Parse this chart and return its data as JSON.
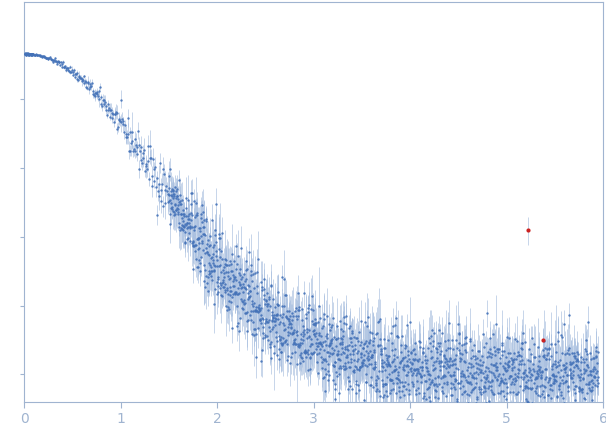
{
  "x_min": 0,
  "x_max": 6,
  "x_ticks": [
    0,
    1,
    2,
    3,
    4,
    5,
    6
  ],
  "y_min": -0.08,
  "y_max": 1.08,
  "dot_color": "#4472b8",
  "error_color": "#a8bfdf",
  "outlier_color": "#cc2222",
  "background_color": "#ffffff",
  "axis_color": "#a0b4d0",
  "tick_color": "#a0b4d0",
  "tick_label_color": "#a0b4d0",
  "seed": 42,
  "n_dense_low": 80,
  "n_dense_mid": 200,
  "n_high": 1800,
  "dot_size": 3
}
